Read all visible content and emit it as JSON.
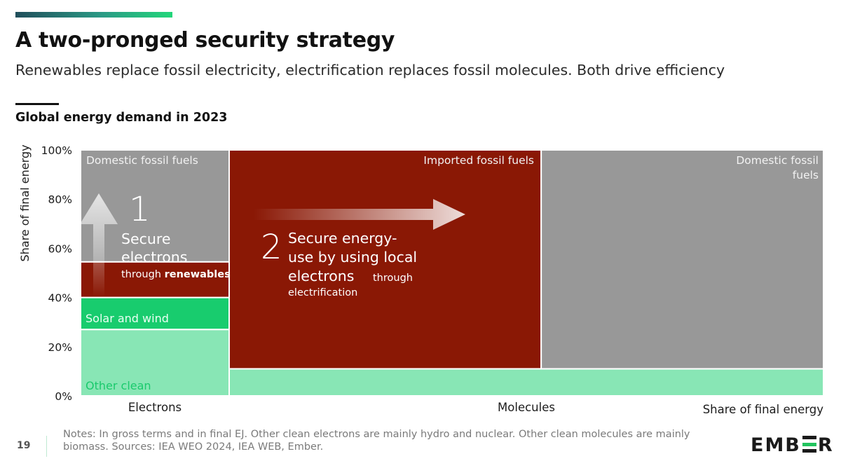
{
  "header": {
    "title": "A two-pronged security strategy",
    "subtitle": "Renewables replace fossil electricity, electrification replaces fossil molecules.  Both drive efficiency",
    "chart_title": "Global energy demand in 2023"
  },
  "footer": {
    "page_number": "19",
    "notes": "Notes: In gross terms and in final EJ.  Other clean electrons are mainly hydro and nuclear.  Other clean molecules are mainly biomass. Sources: IEA WEO 2024, IEA WEB, Ember.",
    "logo_left": "EMB",
    "logo_right": "R"
  },
  "colors": {
    "fossil_grey": "#989898",
    "imported_red": "#8a1805",
    "solar_wind_green": "#18cc6e",
    "other_clean_green": "#88e6b5",
    "arrow_white": "#ffffff"
  },
  "chart_data": {
    "type": "marimekko",
    "title": "Global energy demand in 2023",
    "ylabel": "Share of final energy",
    "xlabel": "Share of final energy",
    "ylim": [
      0,
      100
    ],
    "y_ticks": [
      "0%",
      "20%",
      "40%",
      "60%",
      "80%",
      "100%"
    ],
    "columns": [
      {
        "name": "Electrons",
        "width_share": 20,
        "segments": [
          {
            "label": "Other clean",
            "bottom": 0,
            "top": 27,
            "color": "#88e6b5"
          },
          {
            "label": "Solar and wind",
            "bottom": 27,
            "top": 40,
            "color": "#18cc6e"
          },
          {
            "label": "",
            "bottom": 40,
            "top": 54.5,
            "color": "#8a1805"
          },
          {
            "label": "Domestic fossil fuels",
            "bottom": 54.5,
            "top": 100,
            "color": "#989898"
          }
        ]
      },
      {
        "name": "Molecules",
        "width_share": 80,
        "segments": [
          {
            "label": "",
            "x_from": 0,
            "x_to": 100,
            "bottom": 0,
            "top": 11,
            "color": "#88e6b5"
          },
          {
            "label": "Imported fossil fuels",
            "x_from": 0,
            "x_to": 52.5,
            "bottom": 11,
            "top": 100,
            "color": "#8a1805"
          },
          {
            "label": "Domestic fossil fuels",
            "x_from": 52.5,
            "x_to": 100,
            "bottom": 11,
            "top": 100,
            "color": "#989898"
          }
        ]
      }
    ],
    "annotations": {
      "one_number": "1",
      "one_title_line1": "Secure",
      "one_title_line2": "electrons",
      "one_through": "through ",
      "one_emph": "renewables",
      "two_number": "2",
      "two_line1": "Secure energy-",
      "two_line2": "use by using local",
      "two_line3": "electrons",
      "two_through": "through",
      "two_line4": "electrification",
      "domestic_right_line1": "Domestic fossil",
      "domestic_right_line2": "fuels"
    }
  }
}
